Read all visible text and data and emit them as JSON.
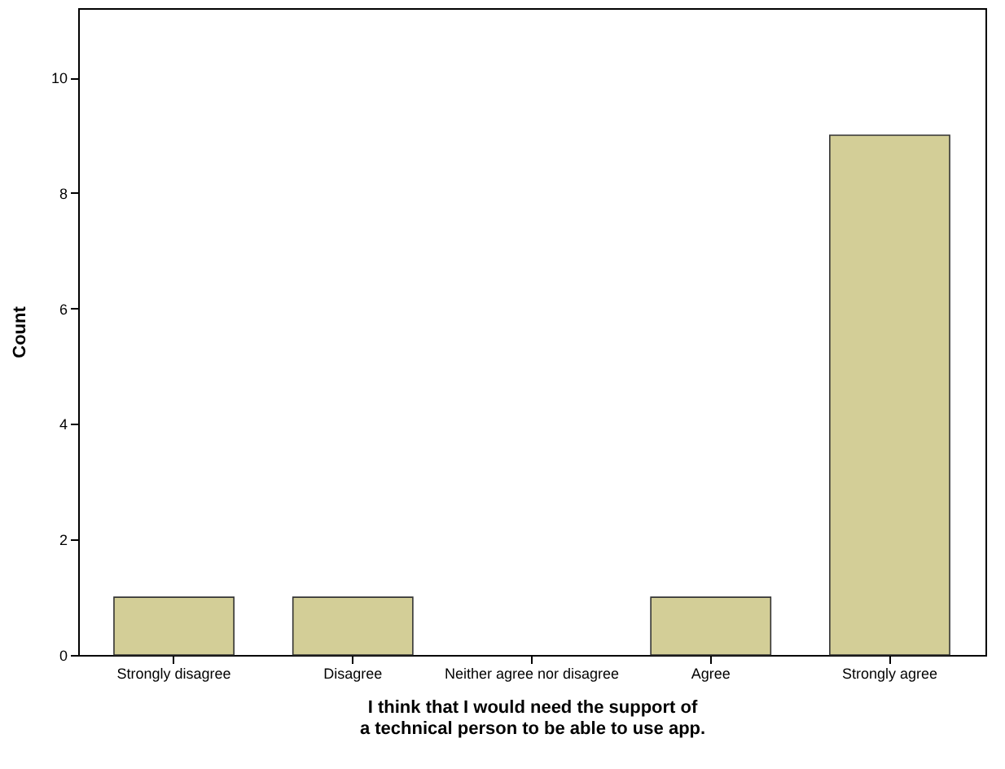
{
  "chart_data": {
    "type": "bar",
    "xlabel": "I think that I would need the support of a technical person to be able to use app.",
    "ylabel": "Count",
    "categories": [
      "Strongly disagree",
      "Disagree",
      "Neither agree nor disagree",
      "Agree",
      "Strongly agree"
    ],
    "values": [
      1,
      1,
      0,
      1,
      9
    ],
    "color": "#d3ce97",
    "ylim": [
      0,
      11.2
    ],
    "yticks": [
      0,
      2,
      4,
      6,
      8,
      10
    ],
    "grid": false
  }
}
